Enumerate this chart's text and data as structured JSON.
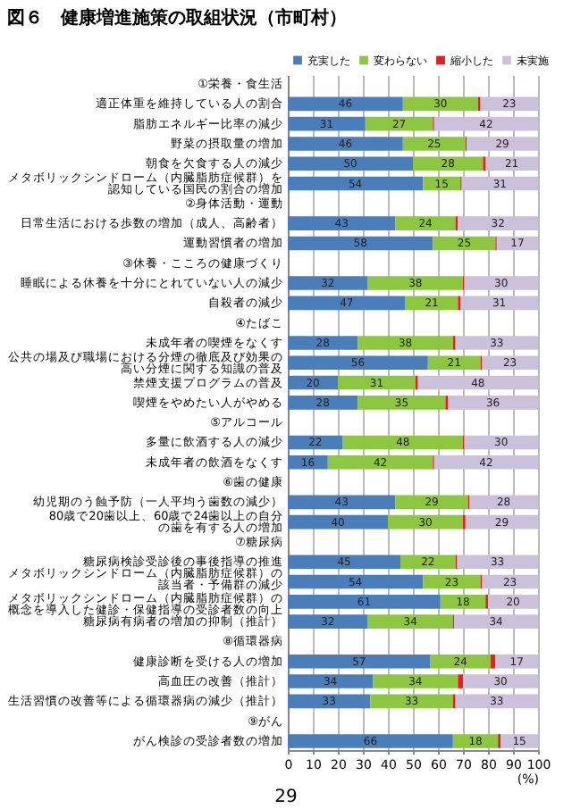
{
  "chart_data": {
    "type": "bar",
    "orientation": "horizontal",
    "stacked": true,
    "title": "図６　健康増進施策の取組状況（市町村）",
    "xlabel": "(%)",
    "legend": "top right",
    "grid": "x",
    "xlim": [
      0,
      100
    ],
    "xticks": [
      0,
      10,
      20,
      30,
      40,
      50,
      60,
      70,
      80,
      90,
      100
    ],
    "categories": [
      "①栄養・食生活",
      "適正体重を維持している人の割合",
      "脂肪エネルギー比率の減少",
      "野菜の摂取量の増加",
      "朝食を欠食する人の減少",
      "メタボリックシンドローム（内臓脂肪症候群）を認知している国民の割合の増加",
      "②身体活動・運動",
      "日常生活における歩数の増加（成人、高齢者）",
      "運動習慣者の増加",
      "③休養・こころの健康づくり",
      "睡眠による休養を十分にとれていない人の減少",
      "自殺者の減少",
      "④たばこ",
      "未成年者の喫煙をなくす",
      "公共の場及び職場における分煙の徹底及び効果の高い分煙に関する知識の普及",
      "禁煙支援プログラムの普及",
      "喫煙をやめたい人がやめる",
      "⑤アルコール",
      "多量に飲酒する人の減少",
      "未成年者の飲酒をなくす",
      "⑥歯の健康",
      "幼児期のう蝕予防（一人平均う歯数の減少）",
      "80歳で20歯以上、60歳で24歯以上の自分の歯を有する人の増加",
      "⑦糖尿病",
      "糖尿病検診受診後の事後指導の推進",
      "メタボリックシンドローム（内臓脂肪症候群）の該当者・予備群の減少",
      "メタボリックシンドローム（内臓脂肪症候群）の概念を導入した健診・保健指導の受診者数の向上",
      "糖尿病有病者の増加の抑制（推計）",
      "⑧循環器病",
      "健康診断を受ける人の増加",
      "高血圧の改善（推計）",
      "生活習慣の改善等による循環器病の減少（推計）",
      "⑨がん",
      "がん検診の受診者数の増加"
    ],
    "series": [
      {
        "name": "充実した",
        "color": "#4a7ebb",
        "values": [
          null,
          46,
          31,
          46,
          50,
          54,
          null,
          43,
          58,
          null,
          32,
          47,
          null,
          28,
          56,
          20,
          28,
          null,
          22,
          16,
          null,
          43,
          40,
          null,
          45,
          54,
          61,
          32,
          null,
          57,
          34,
          33,
          null,
          66
        ],
        "value_labels": [
          null,
          "46",
          "31",
          "46",
          "50",
          "54",
          null,
          "43",
          "58",
          null,
          "32",
          "47",
          null,
          "28",
          "56",
          "20",
          "28",
          null,
          "22",
          "16",
          null,
          "43",
          "40",
          null,
          "45",
          "54",
          "61",
          "32",
          null,
          "57",
          "34",
          "33",
          null,
          "66"
        ]
      },
      {
        "name": "変わらない",
        "color": "#8dc63f",
        "values": [
          null,
          30,
          27,
          25,
          28,
          15,
          null,
          24,
          25,
          null,
          38,
          21,
          null,
          38,
          21,
          31,
          35,
          null,
          48,
          42,
          null,
          29,
          30,
          null,
          22,
          23,
          18,
          34,
          null,
          24,
          34,
          33,
          null,
          18
        ],
        "value_labels": [
          null,
          "30",
          "27",
          "25",
          "28",
          "15",
          null,
          "24",
          "25",
          null,
          "38",
          "21",
          null,
          "38",
          "21",
          "31",
          "35",
          null,
          "48",
          "42",
          null,
          "29",
          "30",
          null,
          "22",
          "23",
          "18",
          "34",
          null,
          "24",
          "34",
          "33",
          null,
          "18"
        ]
      },
      {
        "name": "縮小した",
        "color": "#e8201b",
        "values": [
          null,
          1,
          0.5,
          0.5,
          1,
          0.5,
          null,
          1,
          0.5,
          null,
          0.5,
          1,
          null,
          1,
          0.5,
          1,
          1,
          null,
          0.5,
          0.5,
          null,
          0.5,
          1,
          null,
          0.5,
          0.5,
          1,
          0.5,
          null,
          2,
          2,
          1,
          null,
          1
        ]
      },
      {
        "name": "未実施",
        "color": "#ccc1da",
        "values": [
          null,
          23,
          41.5,
          28.5,
          21,
          30.5,
          null,
          32,
          16.5,
          null,
          29.5,
          31,
          null,
          33,
          22.5,
          48,
          36,
          null,
          29.5,
          41.5,
          null,
          27.5,
          29,
          null,
          32.5,
          22.5,
          20,
          33.5,
          null,
          17,
          30,
          33,
          null,
          15
        ],
        "value_labels": [
          null,
          "23",
          "42",
          "29",
          "21",
          "31",
          null,
          "32",
          "17",
          null,
          "30",
          "31",
          null,
          "33",
          "23",
          "48",
          "36",
          null,
          "30",
          "42",
          null,
          "28",
          "29",
          null,
          "33",
          "23",
          "20",
          "34",
          null,
          "17",
          "30",
          "33",
          null,
          "15"
        ]
      }
    ],
    "annotations": [
      "29"
    ]
  }
}
